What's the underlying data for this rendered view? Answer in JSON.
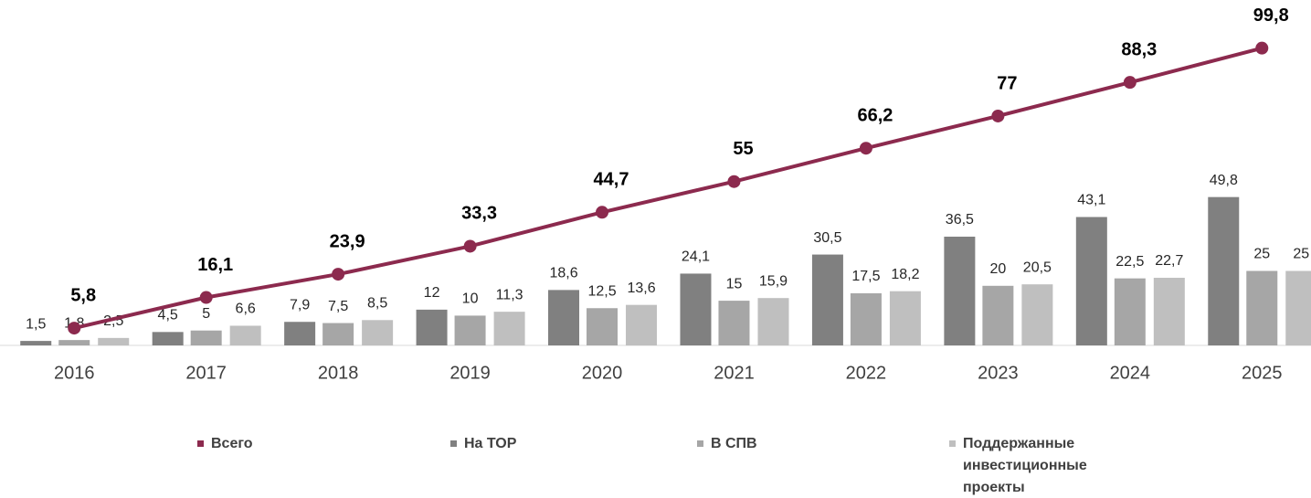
{
  "chart_data": {
    "type": "bar-line",
    "categories": [
      "2016",
      "2017",
      "2018",
      "2019",
      "2020",
      "2021",
      "2022",
      "2023",
      "2024",
      "2025"
    ],
    "ylim": [
      0,
      116
    ],
    "series": [
      {
        "name": "Всего",
        "type": "line",
        "color": "#8c2a4e",
        "values": [
          5.8,
          16.1,
          23.9,
          33.3,
          44.7,
          55,
          66.2,
          77,
          88.3,
          99.8
        ],
        "value_labels": [
          "5,8",
          "16,1",
          "23,9",
          "33,3",
          "44,7",
          "55",
          "66,2",
          "77",
          "88,3",
          "99,8"
        ]
      },
      {
        "name": "На ТОР",
        "type": "bar",
        "color": "#808080",
        "values": [
          1.5,
          4.5,
          7.9,
          12,
          18.6,
          24.1,
          30.5,
          36.5,
          43.1,
          49.8
        ],
        "value_labels": [
          "1,5",
          "4,5",
          "7,9",
          "12",
          "18,6",
          "24,1",
          "30,5",
          "36,5",
          "43,1",
          "49,8"
        ]
      },
      {
        "name": "В СПВ",
        "type": "bar",
        "color": "#a6a6a6",
        "values": [
          1.8,
          5,
          7.5,
          10,
          12.5,
          15,
          17.5,
          20,
          22.5,
          25
        ],
        "value_labels": [
          "1,8",
          "5",
          "7,5",
          "10",
          "12,5",
          "15",
          "17,5",
          "20",
          "22,5",
          "25"
        ]
      },
      {
        "name": "Поддержанные инвестиционные проекты",
        "type": "bar",
        "color": "#bfbfbf",
        "values": [
          2.5,
          6.6,
          8.5,
          11.3,
          13.6,
          15.9,
          18.2,
          20.5,
          22.7,
          25
        ],
        "value_labels": [
          "2,5",
          "6,6",
          "8,5",
          "11,3",
          "13,6",
          "15,9",
          "18,2",
          "20,5",
          "22,7",
          "25"
        ]
      }
    ]
  }
}
